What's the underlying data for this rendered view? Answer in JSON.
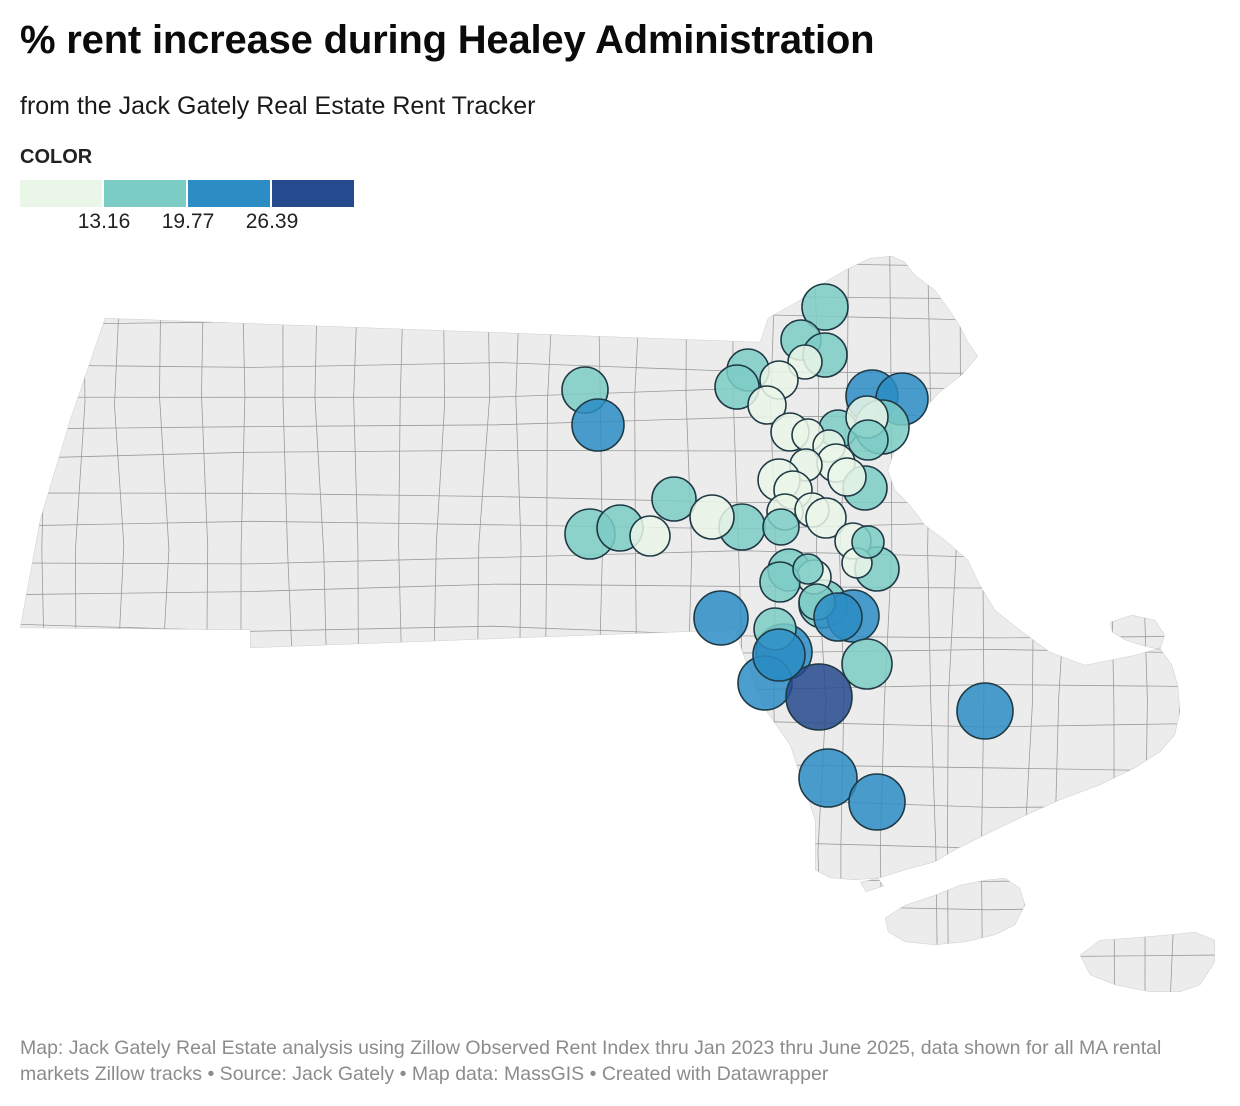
{
  "title": "% rent increase during Healey Administration",
  "subtitle": "from the Jack Gately Real Estate Rent Tracker",
  "legend": {
    "title": "COLOR",
    "colors": [
      "#eaf6e7",
      "#7cccc6",
      "#2b8dc4",
      "#264a8e"
    ],
    "ticks": [
      "13.16",
      "19.77",
      "26.39"
    ]
  },
  "source": "Map: Jack Gately Real Estate analysis using Zillow Observed Rent Index thru Jan 2023 thru June 2025, data shown for all MA rental markets Zillow tracks • Source: Jack Gately • Map data: MassGIS • Created with Datawrapper",
  "map": {
    "land_color": "#ececec",
    "border_color": "#9a9a9a",
    "symbol_stroke": "#1f3a45",
    "markets": [
      {
        "bin": 1
      },
      {
        "bin": 1
      },
      {
        "bin": 1
      },
      {
        "bin": 0
      },
      {
        "bin": 1
      },
      {
        "bin": 1
      },
      {
        "bin": 0
      },
      {
        "bin": 2
      },
      {
        "bin": 2
      },
      {
        "bin": 1
      },
      {
        "bin": 2
      },
      {
        "bin": 0
      },
      {
        "bin": 0
      },
      {
        "bin": 1
      },
      {
        "bin": 0
      },
      {
        "bin": 1
      },
      {
        "bin": 0
      },
      {
        "bin": 0
      },
      {
        "bin": 1
      },
      {
        "bin": 0
      },
      {
        "bin": 0
      },
      {
        "bin": 1
      },
      {
        "bin": 0
      },
      {
        "bin": 0
      },
      {
        "bin": 1
      },
      {
        "bin": 1
      },
      {
        "bin": 0
      },
      {
        "bin": 1
      },
      {
        "bin": 0
      },
      {
        "bin": 1
      },
      {
        "bin": 0
      },
      {
        "bin": 0
      },
      {
        "bin": 0
      },
      {
        "bin": 1
      },
      {
        "bin": 1
      },
      {
        "bin": 0
      },
      {
        "bin": 0
      },
      {
        "bin": 1
      },
      {
        "bin": 0
      },
      {
        "bin": 1
      },
      {
        "bin": 2
      },
      {
        "bin": 0
      },
      {
        "bin": 2
      },
      {
        "bin": 1
      },
      {
        "bin": 1
      },
      {
        "bin": 2
      },
      {
        "bin": 2
      },
      {
        "bin": 2
      },
      {
        "bin": 3
      },
      {
        "bin": 1
      },
      {
        "bin": 2
      },
      {
        "bin": 2
      },
      {
        "bin": 2
      },
      {
        "bin": 1
      },
      {
        "bin": 1
      },
      {
        "bin": 1
      },
      {
        "bin": 2
      }
    ]
  }
}
